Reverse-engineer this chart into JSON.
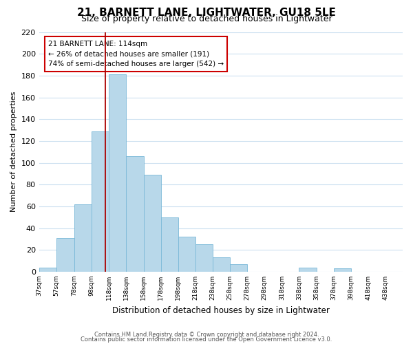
{
  "title": "21, BARNETT LANE, LIGHTWATER, GU18 5LE",
  "subtitle": "Size of property relative to detached houses in Lightwater",
  "xlabel": "Distribution of detached houses by size in Lightwater",
  "ylabel": "Number of detached properties",
  "bar_edges": [
    37,
    57,
    78,
    98,
    118,
    138,
    158,
    178,
    198,
    218,
    238,
    258,
    278,
    298,
    318,
    338,
    358,
    378,
    398,
    418,
    438
  ],
  "bar_heights": [
    4,
    31,
    62,
    129,
    181,
    106,
    89,
    50,
    32,
    25,
    13,
    7,
    0,
    0,
    0,
    4,
    0,
    3,
    0,
    0
  ],
  "bar_color": "#b8d8ea",
  "bar_edge_color": "#7ab8d8",
  "highlight_line_x": 114,
  "highlight_line_color": "#aa0000",
  "annotation_line1": "21 BARNETT LANE: 114sqm",
  "annotation_line2": "← 26% of detached houses are smaller (191)",
  "annotation_line3": "74% of semi-detached houses are larger (542) →",
  "annotation_box_edge_color": "#cc0000",
  "xlim_left": 37,
  "xlim_right": 458,
  "ylim_top": 220,
  "yticks": [
    0,
    20,
    40,
    60,
    80,
    100,
    120,
    140,
    160,
    180,
    200,
    220
  ],
  "xtick_labels": [
    "37sqm",
    "57sqm",
    "78sqm",
    "98sqm",
    "118sqm",
    "138sqm",
    "158sqm",
    "178sqm",
    "198sqm",
    "218sqm",
    "238sqm",
    "258sqm",
    "278sqm",
    "298sqm",
    "318sqm",
    "338sqm",
    "358sqm",
    "378sqm",
    "398sqm",
    "418sqm",
    "438sqm"
  ],
  "grid_color": "#cce0f0",
  "background_color": "#ffffff",
  "footer_line1": "Contains HM Land Registry data © Crown copyright and database right 2024.",
  "footer_line2": "Contains public sector information licensed under the Open Government Licence v3.0."
}
